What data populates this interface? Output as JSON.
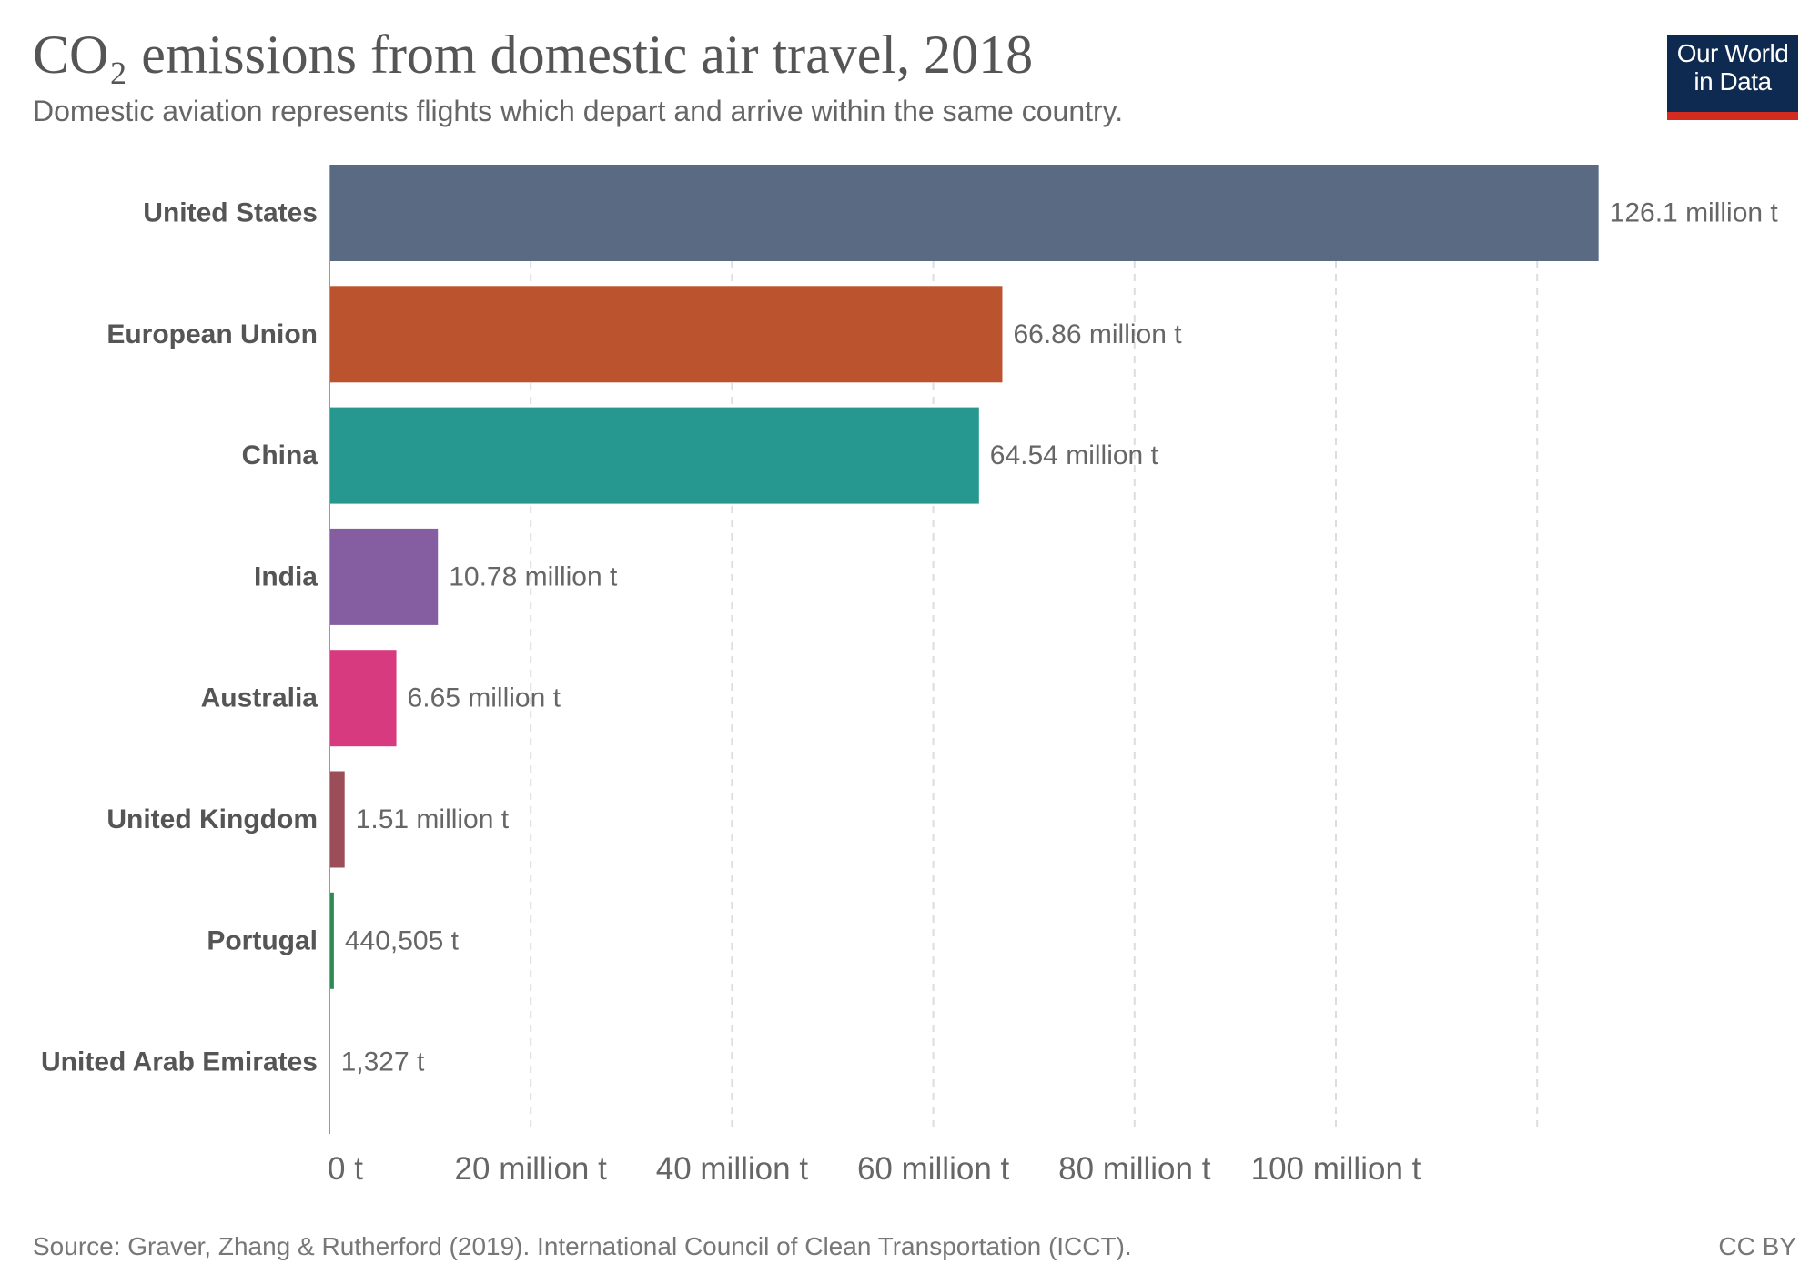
{
  "header": {
    "title": "CO₂ emissions from domestic air travel, 2018",
    "subtitle": "Domestic aviation represents flights which depart and arrive within the same country."
  },
  "logo": {
    "line1": "Our World",
    "line2": "in Data"
  },
  "footer": {
    "source": "Source: Graver, Zhang & Rutherford (2019). International Council of Clean Transportation (ICCT).",
    "license": "CC BY"
  },
  "chart_data": {
    "type": "bar",
    "orientation": "horizontal",
    "title": "CO₂ emissions from domestic air travel, 2018",
    "categories": [
      "United States",
      "European Union",
      "China",
      "India",
      "Australia",
      "United Kingdom",
      "Portugal",
      "United Arab Emirates"
    ],
    "values": [
      126100000,
      66860000,
      64540000,
      10780000,
      6650000,
      1510000,
      440505,
      1327
    ],
    "value_labels": [
      "126.1 million t",
      "66.86 million t",
      "64.54 million t",
      "10.78 million t",
      "6.65 million t",
      "1.51 million t",
      "440,505 t",
      "1,327 t"
    ],
    "colors": [
      "#5a6a82",
      "#bb532e",
      "#27988f",
      "#855ea1",
      "#d73a7f",
      "#9b4d58",
      "#2c8a55",
      "#9d9d9d"
    ],
    "xlim": [
      0,
      126100000
    ],
    "xticks": [
      0,
      20000000,
      40000000,
      60000000,
      80000000,
      100000000
    ],
    "xtick_labels": [
      "0 t",
      "20 million t",
      "40 million t",
      "60 million t",
      "80 million t",
      "100 million t"
    ],
    "gridlines": [
      20000000,
      40000000,
      60000000,
      80000000,
      100000000,
      120000000
    ],
    "grid": true,
    "xlabel": "",
    "ylabel": ""
  }
}
